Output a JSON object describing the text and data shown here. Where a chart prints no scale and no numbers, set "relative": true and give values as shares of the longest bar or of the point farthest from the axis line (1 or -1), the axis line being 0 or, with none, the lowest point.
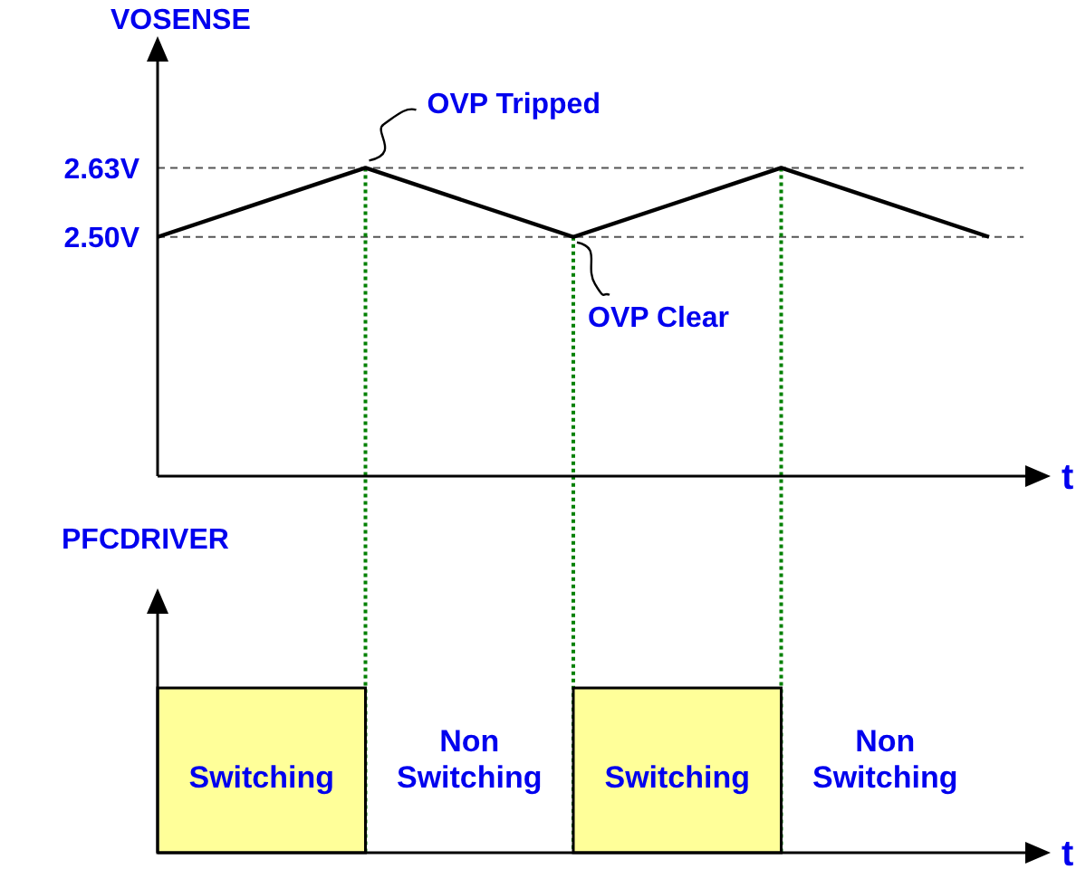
{
  "chart_data": [
    {
      "type": "line",
      "ylabel": "VOSENSE",
      "xlabel": "t",
      "categories": [
        null,
        null,
        null,
        null,
        null
      ],
      "ylim": [
        2.05,
        2.83
      ],
      "grid": true,
      "yticks": [
        {
          "value": 2.5,
          "label": "2.50V"
        },
        {
          "value": 2.63,
          "label": "2.63V"
        }
      ],
      "tick_labels": "y",
      "series": [
        {
          "color": "#000000",
          "values": [
            2.5,
            2.63,
            2.5,
            2.63,
            2.5
          ]
        }
      ],
      "annotations": [
        "OVP Tripped",
        "OVP Clear"
      ]
    },
    {
      "type": "bar",
      "relative": true,
      "ylabel": "PFCDRIVER",
      "xlabel": "t",
      "categories": [
        "Switching",
        "Non Switching",
        "Switching",
        "Non Switching"
      ],
      "values": [
        1,
        0,
        1,
        0
      ],
      "color": "#ffff99"
    }
  ]
}
